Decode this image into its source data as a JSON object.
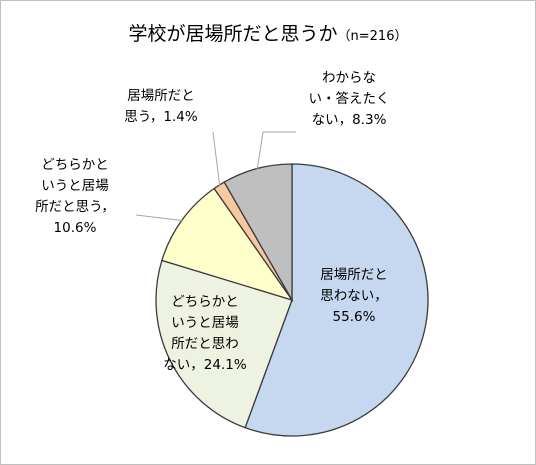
{
  "chart_data": {
    "type": "pie",
    "title": "学校が居場所だと思うか",
    "subtitle": "（n=216）",
    "slices": [
      {
        "label": "居場所だと思わない",
        "value": 55.6,
        "value_label": "55.6%",
        "color": "#c5d8f0"
      },
      {
        "label": "どちらかというと居場所だと思わない",
        "value": 24.1,
        "value_label": "24.1%",
        "color": "#eef2e1"
      },
      {
        "label": "どちらかというと居場所だと思う",
        "value": 10.6,
        "value_label": "10.6%",
        "color": "#ffffcc"
      },
      {
        "label": "居場所だと思う",
        "value": 1.4,
        "value_label": "1.4%",
        "color": "#f8c8a0"
      },
      {
        "label": "わからない・答えたくない",
        "value": 8.3,
        "value_label": "8.3%",
        "color": "#bfbfbf"
      }
    ]
  },
  "labels": {
    "s0": "居場所だと\n思わない，\n55.6%",
    "s1": "どちらかと\nいうと居場\n所だと思わ\nない，24.1%",
    "s2": "どちらかと\nいうと居場\n所だと思う，\n10.6%",
    "s3": "居場所だと\n思う，1.4%",
    "s4": "わからな\nい・答えたく\nない，8.3%"
  }
}
